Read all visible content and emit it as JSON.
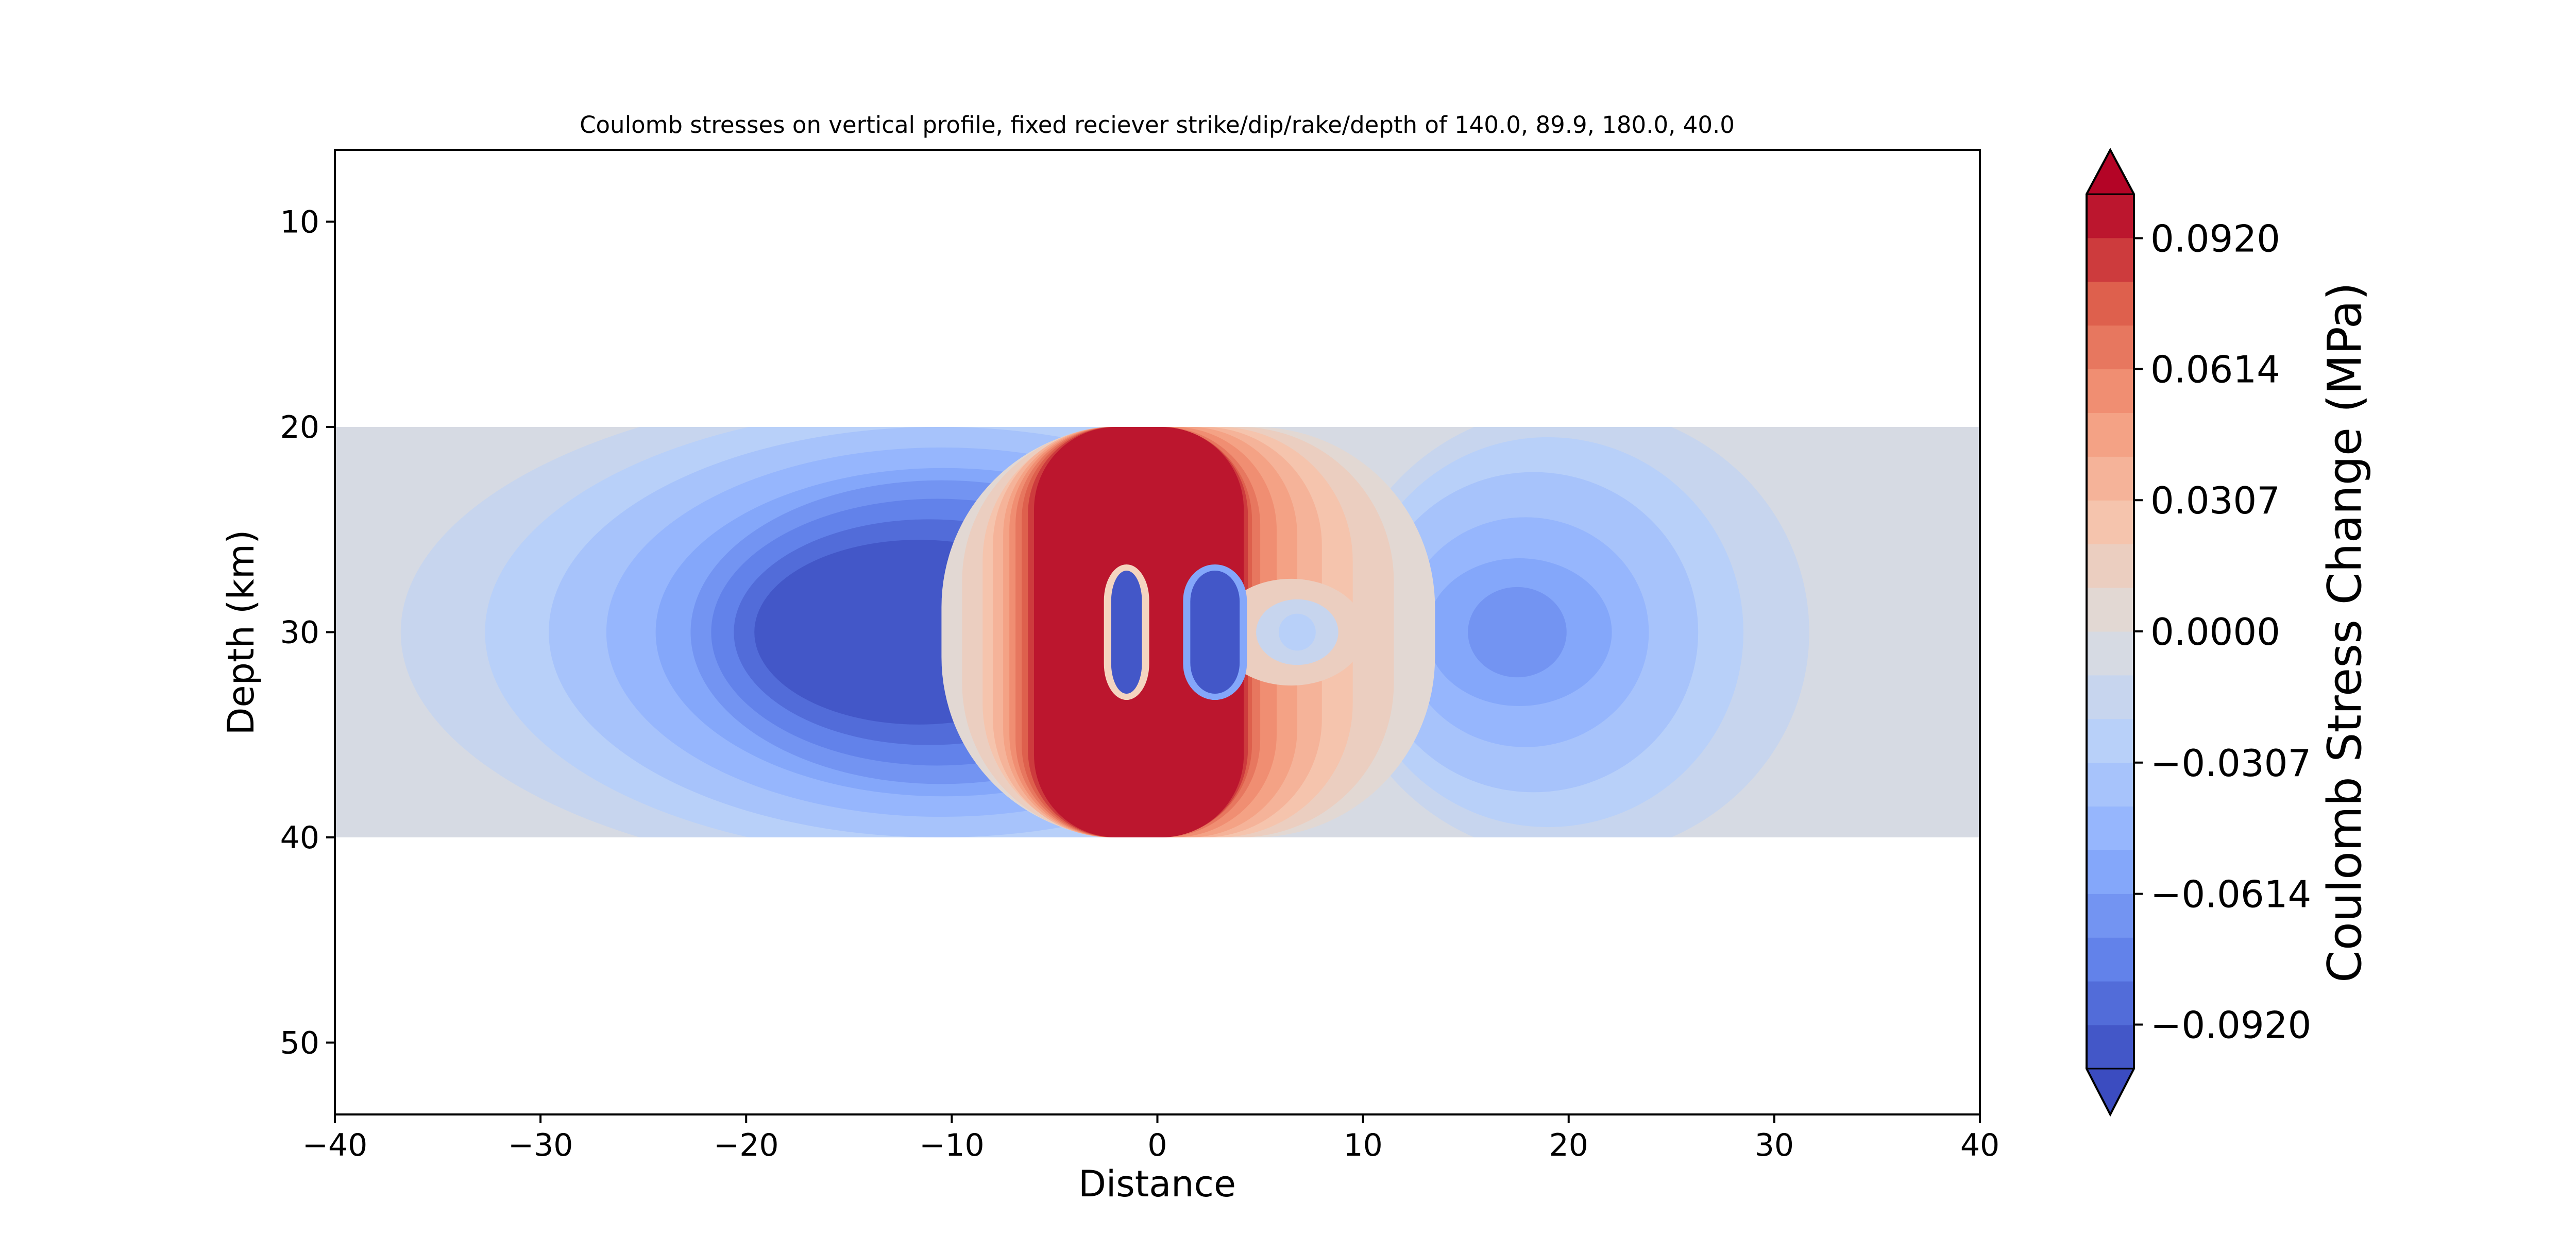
{
  "chart_data": {
    "type": "heatmap",
    "title": "Coulomb stresses on vertical profile, fixed reciever strike/dip/rake/depth of 140.0, 89.9, 180.0, 40.0",
    "xlabel": "Distance",
    "ylabel": "Depth (km)",
    "xlim": [
      -40,
      40
    ],
    "ylim": [
      53.5,
      6.5
    ],
    "y_inverted": true,
    "x_ticks": [
      -40,
      -30,
      -20,
      -10,
      0,
      10,
      20,
      30,
      40
    ],
    "x_tick_labels": [
      "−40",
      "−30",
      "−20",
      "−10",
      "0",
      "10",
      "20",
      "30",
      "40"
    ],
    "y_ticks": [
      10,
      20,
      30,
      40,
      50
    ],
    "y_tick_labels": [
      "10",
      "20",
      "30",
      "40",
      "50"
    ],
    "data_extent": {
      "x": [
        -40,
        40
      ],
      "depth": [
        20,
        40
      ]
    },
    "grid": false,
    "colorbar": {
      "label": "Coulomb Stress Change (MPa)",
      "colormap": "coolwarm",
      "vmin": -0.1023,
      "vmax": 0.1023,
      "extend": "both",
      "n_levels": 20,
      "ticks": [
        0.092,
        0.0614,
        0.0307,
        0.0,
        -0.0307,
        -0.0614,
        -0.092
      ],
      "tick_labels": [
        "0.0920",
        "0.0614",
        "0.0307",
        "0.0000",
        "−0.0307",
        "−0.0614",
        "−0.0920"
      ]
    },
    "features": [
      {
        "kind": "negative lobe",
        "center": [
          -12,
          30
        ],
        "peak_value": -0.102
      },
      {
        "kind": "positive lobe",
        "center": [
          -1,
          30
        ],
        "peak_value": 0.102
      },
      {
        "kind": "negative patch",
        "center": [
          -1.5,
          30
        ],
        "peak_value": -0.102
      },
      {
        "kind": "negative patch",
        "center": [
          2.8,
          30
        ],
        "peak_value": -0.102
      },
      {
        "kind": "negative lobe",
        "center": [
          17.5,
          30
        ],
        "peak_value": -0.065
      }
    ]
  }
}
